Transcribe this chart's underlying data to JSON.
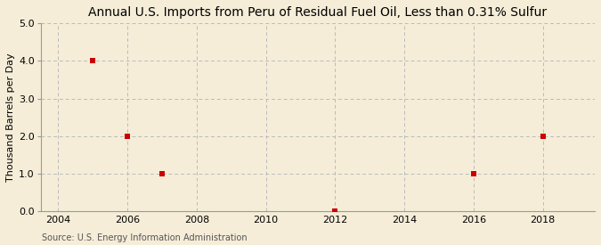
{
  "title": "Annual U.S. Imports from Peru of Residual Fuel Oil, Less than 0.31% Sulfur",
  "ylabel": "Thousand Barrels per Day",
  "source": "Source: U.S. Energy Information Administration",
  "xlim": [
    2003.5,
    2019.5
  ],
  "ylim": [
    0.0,
    5.0
  ],
  "xticks": [
    2004,
    2006,
    2008,
    2010,
    2012,
    2014,
    2016,
    2018
  ],
  "yticks": [
    0.0,
    1.0,
    2.0,
    3.0,
    4.0,
    5.0
  ],
  "data_x": [
    2005,
    2006,
    2007,
    2012,
    2016,
    2018
  ],
  "data_y": [
    4.0,
    2.0,
    1.0,
    0.0,
    1.0,
    2.0
  ],
  "marker_color": "#cc0000",
  "marker_size": 4,
  "background_color": "#f5edd8",
  "plot_bg_color": "#f5edd8",
  "grid_color": "#bbbbbb",
  "title_fontsize": 10,
  "label_fontsize": 8,
  "tick_fontsize": 8,
  "source_fontsize": 7
}
